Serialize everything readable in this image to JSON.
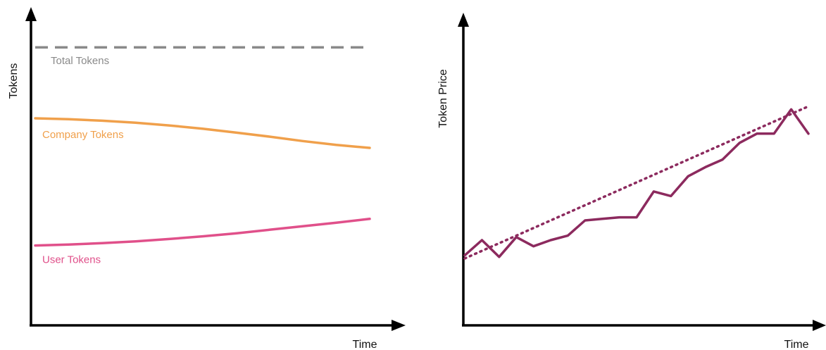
{
  "chart_data": [
    {
      "type": "line",
      "xlabel": "Time",
      "ylabel": "Tokens",
      "xlim": [
        0,
        10
      ],
      "ylim": [
        0,
        100
      ],
      "grid": false,
      "x": [
        0,
        1,
        2,
        3,
        4,
        5,
        6,
        7,
        8,
        9,
        10
      ],
      "series": [
        {
          "name": "Total Tokens",
          "color": "#8a8a8a",
          "style": "dashed",
          "values": [
            94,
            94,
            94,
            94,
            94,
            94,
            94,
            94,
            94,
            94,
            94
          ]
        },
        {
          "name": "Company Tokens",
          "color": "#f0a04b",
          "style": "solid",
          "values": [
            70,
            69.7,
            69.2,
            68.5,
            67.6,
            66.5,
            65.2,
            63.8,
            62.3,
            61,
            60
          ]
        },
        {
          "name": "User Tokens",
          "color": "#e0508a",
          "style": "solid",
          "values": [
            27,
            27.3,
            27.8,
            28.4,
            29.2,
            30.1,
            31.1,
            32.3,
            33.5,
            34.7,
            36
          ]
        }
      ]
    },
    {
      "type": "line",
      "xlabel": "Time",
      "ylabel": "Token Price",
      "xlim": [
        0,
        20
      ],
      "ylim": [
        0,
        100
      ],
      "grid": false,
      "x": [
        0,
        1,
        2,
        3,
        4,
        5,
        6,
        7,
        8,
        9,
        10,
        11,
        12,
        13,
        14,
        15,
        16,
        17,
        18,
        19,
        20
      ],
      "series": [
        {
          "name": "",
          "color": "#8c2a5e",
          "style": "solid",
          "values": [
            23,
            28,
            22.5,
            29,
            26,
            28,
            29.5,
            34.5,
            35,
            35.5,
            35.5,
            44,
            42.5,
            49,
            52,
            54.5,
            60,
            63,
            63,
            71,
            63
          ]
        },
        {
          "name": "",
          "color": "#8c2a5e",
          "style": "dotted",
          "values": [
            22,
            24.5,
            27,
            29.5,
            32,
            34.5,
            37,
            39.5,
            42,
            44.5,
            47,
            49.5,
            52,
            54.5,
            57,
            59.5,
            62,
            64.5,
            67,
            69.5,
            72
          ]
        }
      ]
    }
  ]
}
